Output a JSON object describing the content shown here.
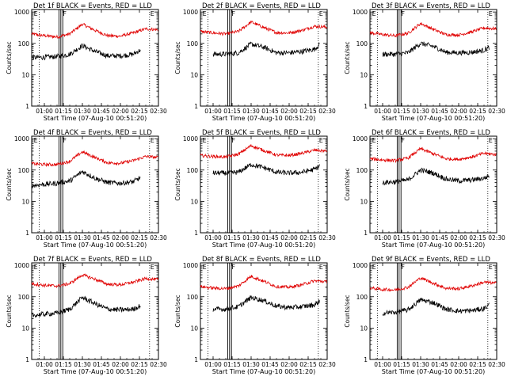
{
  "colors": {
    "events": "#000000",
    "lld": "#e00000",
    "axis": "#000000"
  },
  "shared": {
    "ylabel": "Counts/sec",
    "xlabel": "Start Time (07-Aug-10 00:51:20)",
    "y_ticks": [
      "1",
      "10",
      "100",
      "1000"
    ],
    "marker_labels": [
      "E",
      "F",
      "E"
    ],
    "yscale": "log",
    "ylim": [
      1,
      1200
    ],
    "xlim_minutes": [
      0,
      100
    ]
  },
  "chart_data": [
    {
      "type": "line",
      "title": "Det 1f BLACK = Events, RED = LLD",
      "x_ticks": [
        "01:00",
        "01:15",
        "01:30",
        "01:45",
        "02:00",
        "02:15",
        "02:30"
      ],
      "x_ticks_at": [
        10,
        25,
        40,
        55,
        70,
        85,
        100
      ],
      "series": [
        {
          "name": "LLD",
          "x": [
            0,
            10,
            20,
            30,
            40,
            50,
            60,
            70,
            80,
            90,
            100
          ],
          "values": [
            200,
            175,
            160,
            200,
            410,
            260,
            175,
            170,
            215,
            290,
            270
          ]
        },
        {
          "name": "Events",
          "x": [
            0,
            10,
            20,
            30,
            40,
            50,
            60,
            70,
            80,
            86
          ],
          "values": [
            35,
            36,
            38,
            45,
            85,
            55,
            40,
            40,
            45,
            62
          ]
        }
      ]
    },
    {
      "type": "line",
      "title": "Det 2f BLACK = Events, RED = LLD",
      "x_ticks": [
        "01:00",
        "01:15",
        "01:30",
        "01:45",
        "02:00",
        "02:15",
        "02:30"
      ],
      "x_ticks_at": [
        10,
        25,
        40,
        55,
        70,
        85,
        100
      ],
      "series": [
        {
          "name": "LLD",
          "x": [
            0,
            10,
            20,
            30,
            40,
            50,
            60,
            70,
            80,
            90,
            100
          ],
          "values": [
            240,
            215,
            200,
            240,
            480,
            320,
            220,
            215,
            260,
            350,
            330
          ]
        },
        {
          "name": "Events",
          "x": [
            10,
            20,
            30,
            40,
            50,
            60,
            70,
            80,
            90,
            94
          ],
          "values": [
            45,
            45,
            50,
            95,
            75,
            50,
            50,
            55,
            65,
            90
          ]
        }
      ]
    },
    {
      "type": "line",
      "title": "Det 3f BLACK = Events, RED = LLD",
      "x_ticks": [
        "01:00",
        "01:15",
        "01:30",
        "01:45",
        "02:00",
        "02:15",
        "02:30"
      ],
      "x_ticks_at": [
        10,
        25,
        40,
        55,
        70,
        85,
        100
      ],
      "series": [
        {
          "name": "LLD",
          "x": [
            0,
            10,
            20,
            30,
            40,
            50,
            60,
            70,
            80,
            90,
            100
          ],
          "values": [
            220,
            190,
            175,
            210,
            430,
            280,
            190,
            185,
            230,
            310,
            290
          ]
        },
        {
          "name": "Events",
          "x": [
            10,
            20,
            30,
            40,
            50,
            60,
            70,
            80,
            90,
            94
          ],
          "values": [
            45,
            45,
            50,
            100,
            80,
            52,
            50,
            52,
            60,
            75
          ]
        }
      ]
    },
    {
      "type": "line",
      "title": "Det 4f BLACK = Events, RED = LLD",
      "x_ticks": [
        "01:00",
        "01:15",
        "01:30",
        "01:45",
        "02:00",
        "02:15",
        "02:30"
      ],
      "x_ticks_at": [
        10,
        25,
        40,
        55,
        70,
        85,
        100
      ],
      "series": [
        {
          "name": "LLD",
          "x": [
            0,
            10,
            20,
            30,
            40,
            50,
            60,
            70,
            80,
            90,
            100
          ],
          "values": [
            160,
            150,
            150,
            190,
            380,
            250,
            170,
            165,
            200,
            270,
            250
          ]
        },
        {
          "name": "Events",
          "x": [
            0,
            10,
            20,
            30,
            40,
            50,
            60,
            70,
            80,
            86
          ],
          "values": [
            32,
            35,
            38,
            45,
            90,
            55,
            40,
            38,
            42,
            58
          ]
        }
      ]
    },
    {
      "type": "line",
      "title": "Det 5f BLACK = Events, RED = LLD",
      "x_ticks": [
        "01:00",
        "01:15",
        "01:30",
        "01:45",
        "02:00",
        "02:15",
        "02:30"
      ],
      "x_ticks_at": [
        10,
        25,
        40,
        55,
        70,
        85,
        100
      ],
      "series": [
        {
          "name": "LLD",
          "x": [
            0,
            10,
            20,
            30,
            40,
            50,
            60,
            70,
            80,
            90,
            100
          ],
          "values": [
            290,
            270,
            260,
            320,
            600,
            420,
            300,
            290,
            340,
            430,
            400
          ]
        },
        {
          "name": "Events",
          "x": [
            10,
            20,
            30,
            40,
            50,
            60,
            70,
            80,
            90,
            94
          ],
          "values": [
            80,
            80,
            85,
            150,
            120,
            85,
            80,
            85,
            105,
            135
          ]
        }
      ]
    },
    {
      "type": "line",
      "title": "Det 6f BLACK = Events, RED = LLD",
      "x_ticks": [
        "01:00",
        "01:15",
        "01:30",
        "01:45",
        "02:00",
        "02:15",
        "02:30"
      ],
      "x_ticks_at": [
        10,
        25,
        40,
        55,
        70,
        85,
        100
      ],
      "series": [
        {
          "name": "LLD",
          "x": [
            0,
            10,
            20,
            30,
            40,
            50,
            60,
            70,
            80,
            90,
            100
          ],
          "values": [
            230,
            210,
            200,
            240,
            480,
            330,
            230,
            220,
            260,
            340,
            310
          ]
        },
        {
          "name": "Events",
          "x": [
            10,
            20,
            30,
            40,
            50,
            60,
            70,
            80,
            90,
            94
          ],
          "values": [
            40,
            42,
            48,
            100,
            80,
            52,
            45,
            48,
            55,
            65
          ]
        }
      ]
    },
    {
      "type": "line",
      "title": "Det 7f BLACK = Events, RED = LLD",
      "x_ticks": [
        "01:00",
        "01:15",
        "01:30",
        "01:45",
        "02:00",
        "02:15",
        "02:30"
      ],
      "x_ticks_at": [
        10,
        25,
        40,
        55,
        70,
        85,
        100
      ],
      "series": [
        {
          "name": "LLD",
          "x": [
            0,
            10,
            20,
            30,
            40,
            50,
            60,
            70,
            80,
            90,
            100
          ],
          "values": [
            260,
            230,
            220,
            260,
            500,
            360,
            250,
            240,
            290,
            380,
            350
          ]
        },
        {
          "name": "Events",
          "x": [
            0,
            10,
            20,
            30,
            40,
            50,
            60,
            70,
            80,
            86
          ],
          "values": [
            25,
            28,
            30,
            40,
            95,
            60,
            40,
            38,
            40,
            52
          ]
        }
      ]
    },
    {
      "type": "line",
      "title": "Det 8f BLACK = Events, RED = LLD",
      "x_ticks": [
        "01:00",
        "01:15",
        "01:30",
        "01:45",
        "02:00",
        "02:15",
        "02:30"
      ],
      "x_ticks_at": [
        10,
        25,
        40,
        55,
        70,
        85,
        100
      ],
      "series": [
        {
          "name": "LLD",
          "x": [
            0,
            10,
            20,
            30,
            40,
            50,
            60,
            70,
            80,
            90,
            100
          ],
          "values": [
            210,
            190,
            180,
            220,
            450,
            310,
            210,
            200,
            240,
            320,
            300
          ]
        },
        {
          "name": "Events",
          "x": [
            10,
            20,
            30,
            40,
            50,
            60,
            70,
            80,
            90,
            94
          ],
          "values": [
            40,
            40,
            48,
            95,
            75,
            50,
            45,
            48,
            55,
            72
          ]
        }
      ]
    },
    {
      "type": "line",
      "title": "Det 9f BLACK = Events, RED = LLD",
      "x_ticks": [
        "01:00",
        "01:15",
        "01:30",
        "01:45",
        "02:00",
        "02:15",
        "02:30"
      ],
      "x_ticks_at": [
        10,
        25,
        40,
        55,
        70,
        85,
        100
      ],
      "series": [
        {
          "name": "LLD",
          "x": [
            0,
            10,
            20,
            30,
            40,
            50,
            60,
            70,
            80,
            90,
            100
          ],
          "values": [
            190,
            170,
            165,
            200,
            400,
            270,
            185,
            180,
            220,
            290,
            270
          ]
        },
        {
          "name": "Events",
          "x": [
            10,
            20,
            30,
            40,
            50,
            60,
            70,
            80,
            90,
            94
          ],
          "values": [
            30,
            32,
            38,
            80,
            65,
            40,
            35,
            36,
            42,
            55
          ]
        }
      ]
    }
  ]
}
